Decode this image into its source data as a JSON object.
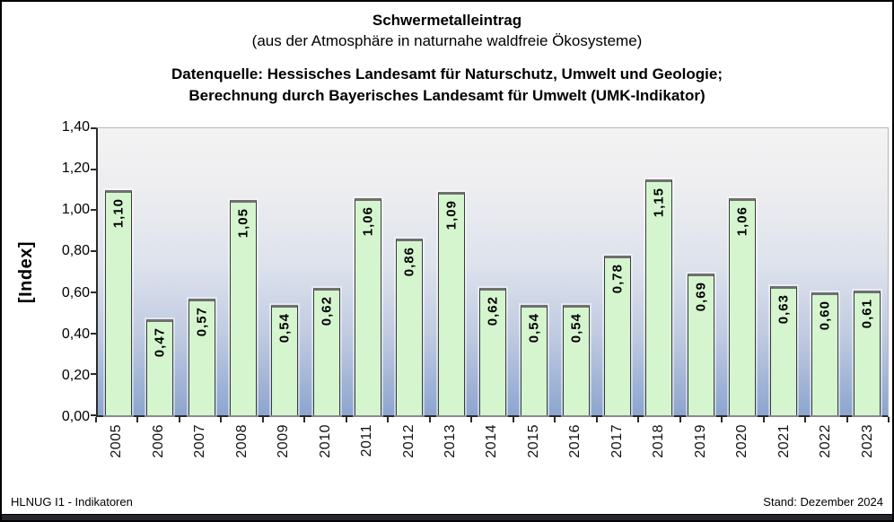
{
  "title": {
    "line1": "Schwermetalleintrag",
    "line2": "(aus der Atmosphäre in naturnahe waldfreie Ökosysteme)",
    "source_line1": "Datenquelle: Hessisches Landesamt für Naturschutz, Umwelt und Geologie;",
    "source_line2": "Berechnung durch Bayerisches Landesamt für Umwelt (UMK-Indikator)"
  },
  "chart_data": {
    "type": "bar",
    "title": "Schwermetalleintrag (aus der Atmosphäre in naturnahe waldfreie Ökosysteme)",
    "categories": [
      "2005",
      "2006",
      "2007",
      "2008",
      "2009",
      "2010",
      "2011",
      "2012",
      "2013",
      "2014",
      "2015",
      "2016",
      "2017",
      "2018",
      "2019",
      "2020",
      "2021",
      "2022",
      "2023"
    ],
    "values": [
      1.1,
      0.47,
      0.57,
      1.05,
      0.54,
      0.62,
      1.06,
      0.86,
      1.09,
      0.62,
      0.54,
      0.54,
      0.78,
      1.15,
      0.69,
      1.06,
      0.63,
      0.6,
      0.61
    ],
    "value_labels": [
      "1,10",
      "0,47",
      "0,57",
      "1,05",
      "0,54",
      "0,62",
      "1,06",
      "0,86",
      "1,09",
      "0,62",
      "0,54",
      "0,54",
      "0,78",
      "1,15",
      "0,69",
      "1,06",
      "0,63",
      "0,60",
      "0,61"
    ],
    "xlabel": "",
    "ylabel": "[Index]",
    "ylim": [
      0,
      1.4
    ],
    "y_ticks": [
      {
        "value": 1.4,
        "label": "1,40"
      },
      {
        "value": 1.2,
        "label": "1,20"
      },
      {
        "value": 1.0,
        "label": "1,00"
      },
      {
        "value": 0.8,
        "label": "0,80"
      },
      {
        "value": 0.6,
        "label": "0,60"
      },
      {
        "value": 0.4,
        "label": "0,40"
      },
      {
        "value": 0.2,
        "label": "0,20"
      },
      {
        "value": 0.0,
        "label": "0,00"
      }
    ],
    "grid": false,
    "legend": false,
    "value_labels_rotated": true,
    "category_labels_rotated": true
  },
  "colors": {
    "bar_fill": "#d5f5cf",
    "bar_border": "#3a3a3a",
    "plot_bg_top": "#f3f3f3",
    "plot_bg_bottom": "#8ca5ce",
    "bottom_band": "#26262e"
  },
  "footer": {
    "left": "HLNUG I1 - Indikatoren",
    "right": "Stand: Dezember 2024"
  }
}
